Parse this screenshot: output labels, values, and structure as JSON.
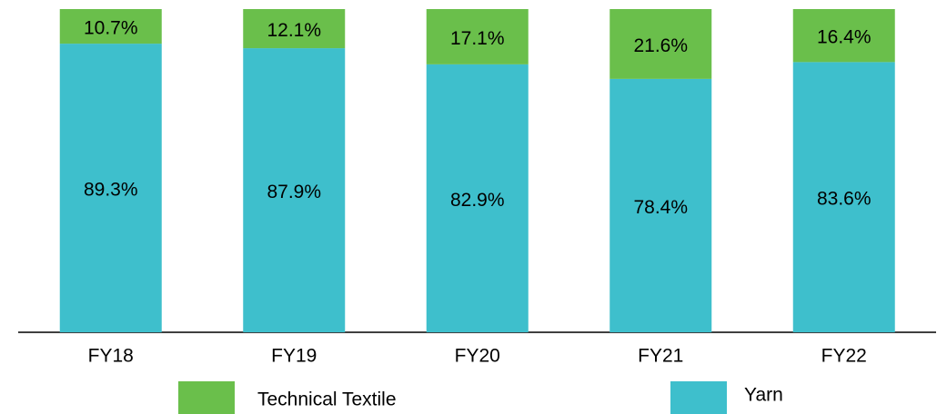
{
  "chart_data": {
    "type": "stacked_bar",
    "categories": [
      "FY18",
      "FY19",
      "FY20",
      "FY21",
      "FY22"
    ],
    "series": [
      {
        "name": "Technical Textile",
        "color": "#6abf4b",
        "values": [
          10.7,
          12.1,
          17.1,
          21.6,
          16.4
        ],
        "value_labels": [
          "10.7%",
          "12.1%",
          "17.1%",
          "21.6%",
          "16.4%"
        ]
      },
      {
        "name": "Yarn",
        "color": "#3ebfcc",
        "values": [
          89.3,
          87.9,
          82.9,
          78.4,
          83.6
        ],
        "value_labels": [
          "89.3%",
          "87.9%",
          "82.9%",
          "78.4%",
          "83.6%"
        ]
      }
    ],
    "ylim": [
      0,
      100
    ]
  }
}
